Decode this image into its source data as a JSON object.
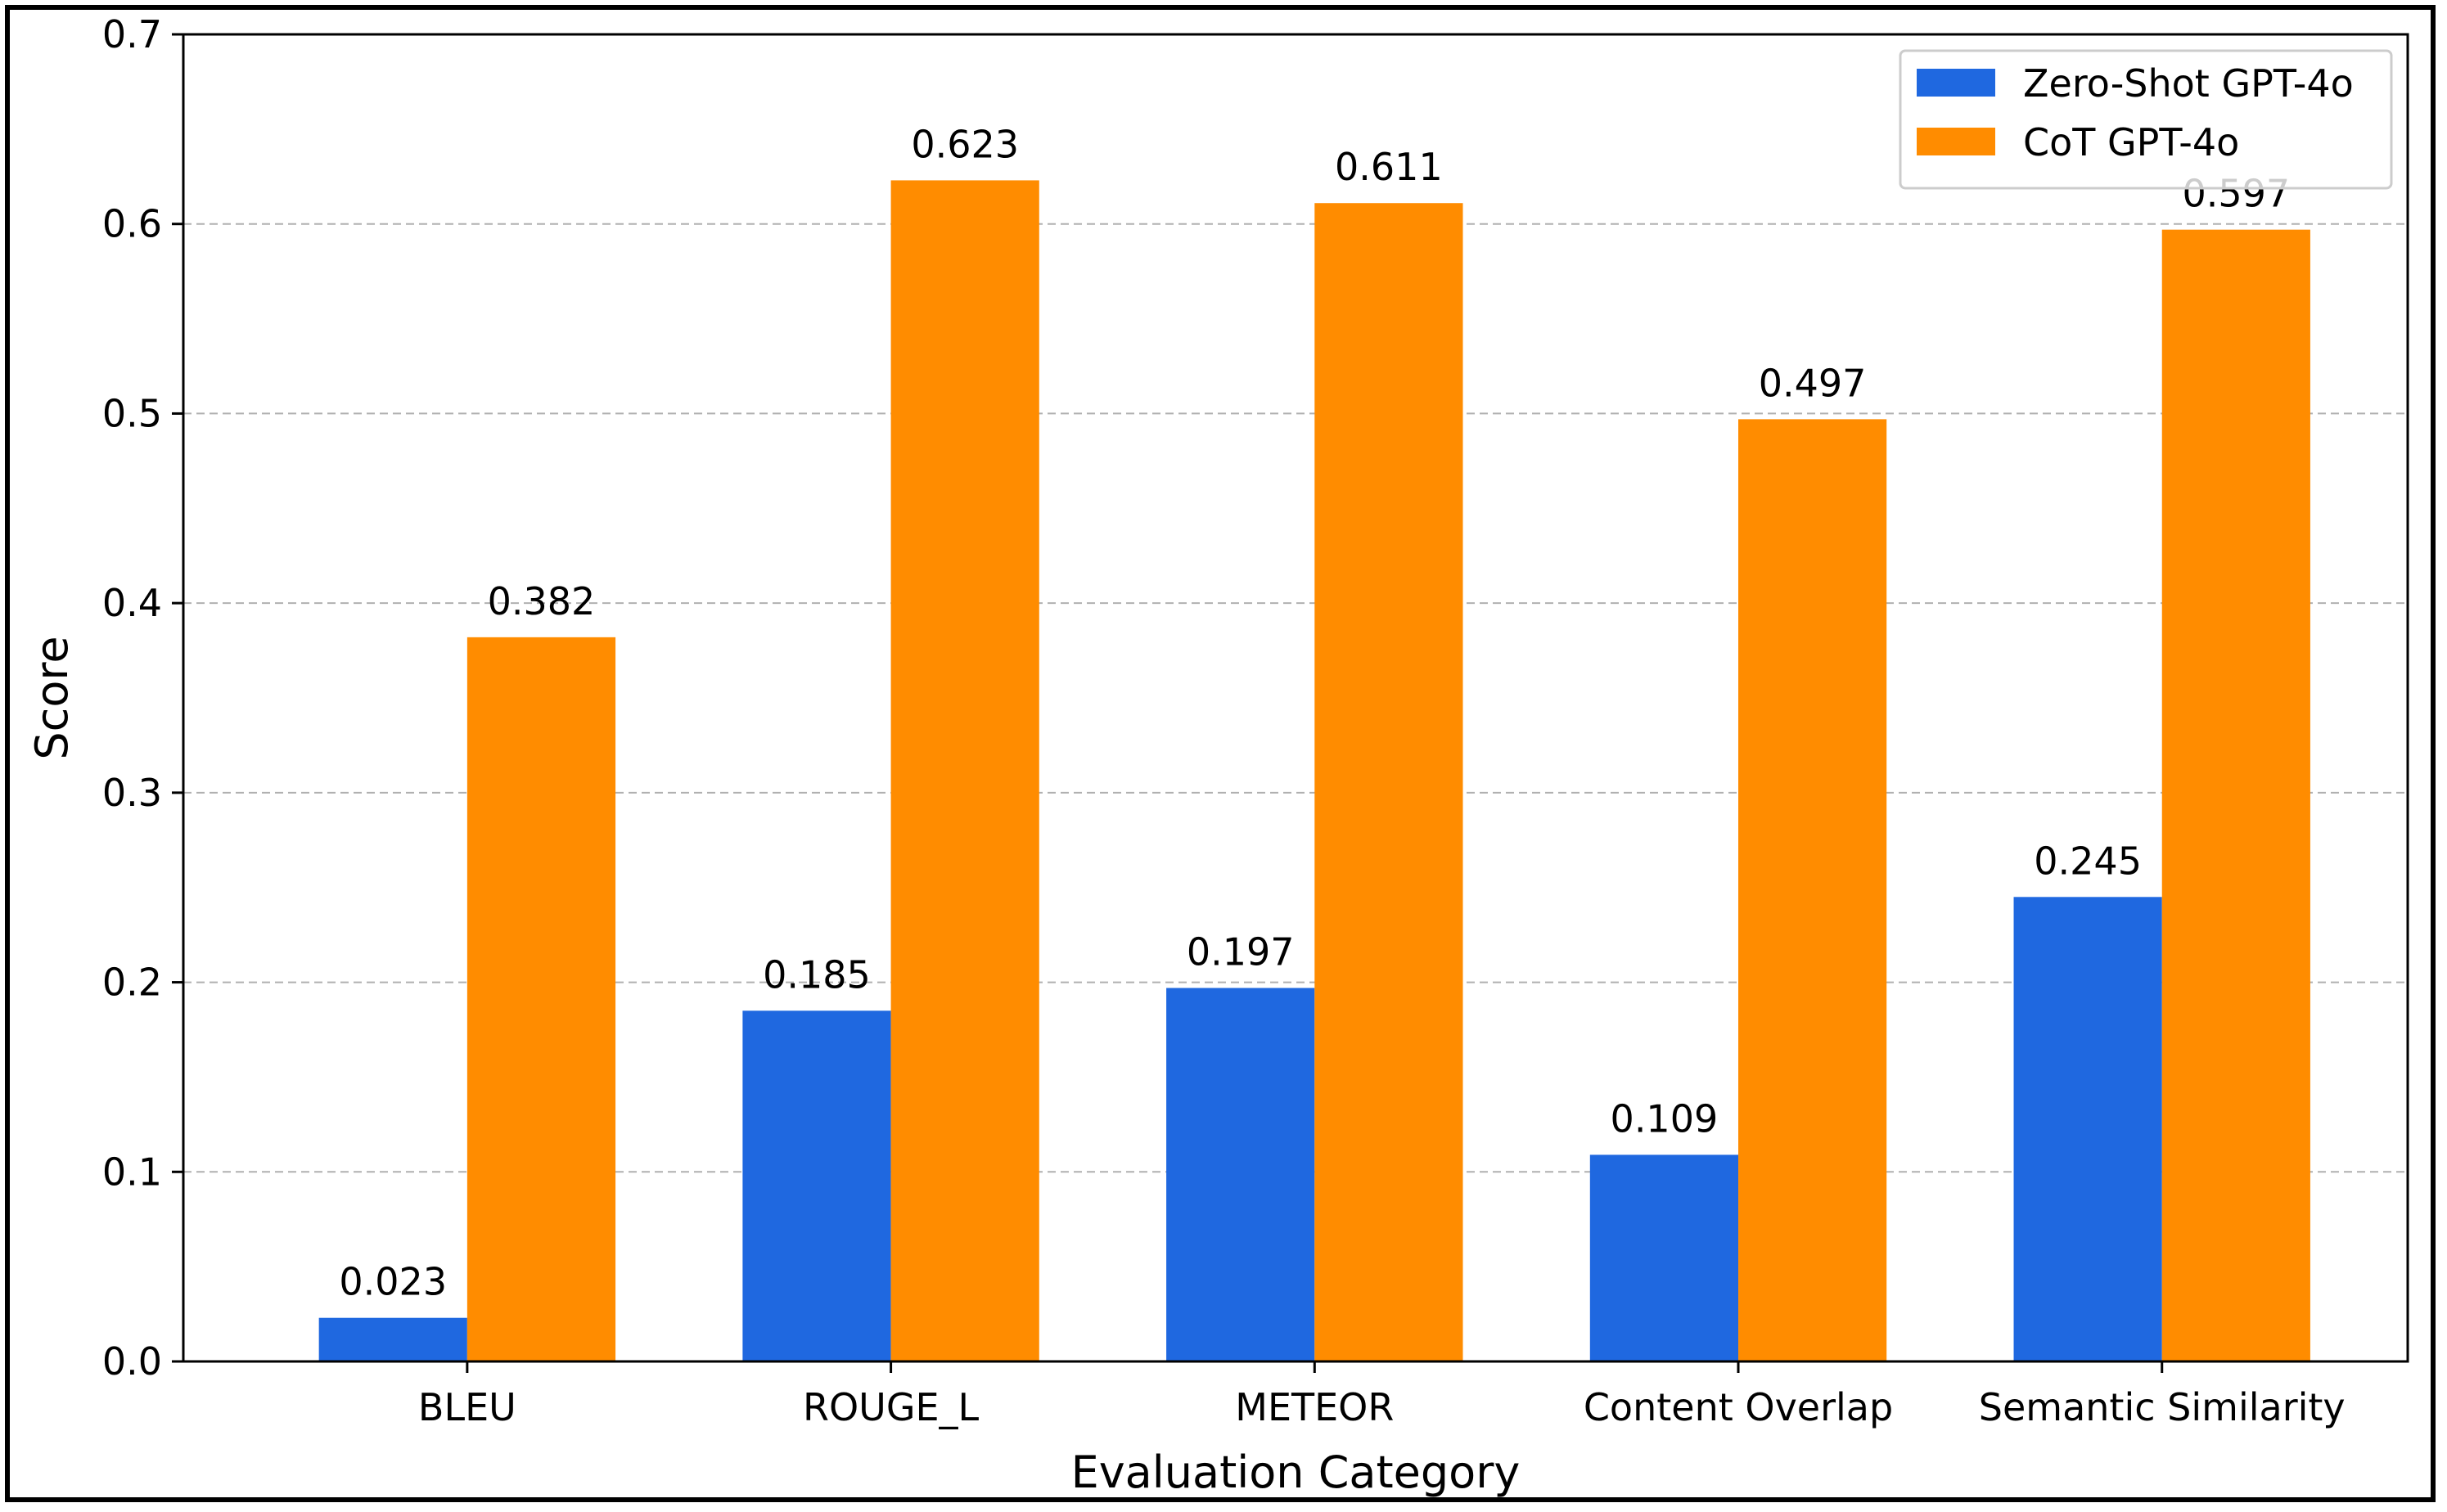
{
  "chart_data": {
    "type": "bar",
    "title": "",
    "xlabel": "Evaluation Category",
    "ylabel": "Score",
    "categories": [
      "BLEU",
      "ROUGE_L",
      "METEOR",
      "Content Overlap",
      "Semantic Similarity"
    ],
    "series": [
      {
        "name": "Zero-Shot GPT-4o",
        "color": "#1f68e0",
        "values": [
          0.023,
          0.185,
          0.197,
          0.109,
          0.245
        ],
        "labels": [
          "0.023",
          "0.185",
          "0.197",
          "0.109",
          "0.245"
        ]
      },
      {
        "name": "CoT GPT-4o",
        "color": "#ff8c00",
        "values": [
          0.382,
          0.623,
          0.611,
          0.497,
          0.597
        ],
        "labels": [
          "0.382",
          "0.623",
          "0.611",
          "0.497",
          "0.597"
        ]
      }
    ],
    "ylim": [
      0,
      0.7
    ],
    "yticks": [
      0.0,
      0.1,
      0.2,
      0.3,
      0.4,
      0.5,
      0.6,
      0.7
    ],
    "ytick_labels": [
      "0.0",
      "0.1",
      "0.2",
      "0.3",
      "0.4",
      "0.5",
      "0.6",
      "0.7"
    ],
    "grid": "y-dashed",
    "legend_position": "top-right"
  }
}
